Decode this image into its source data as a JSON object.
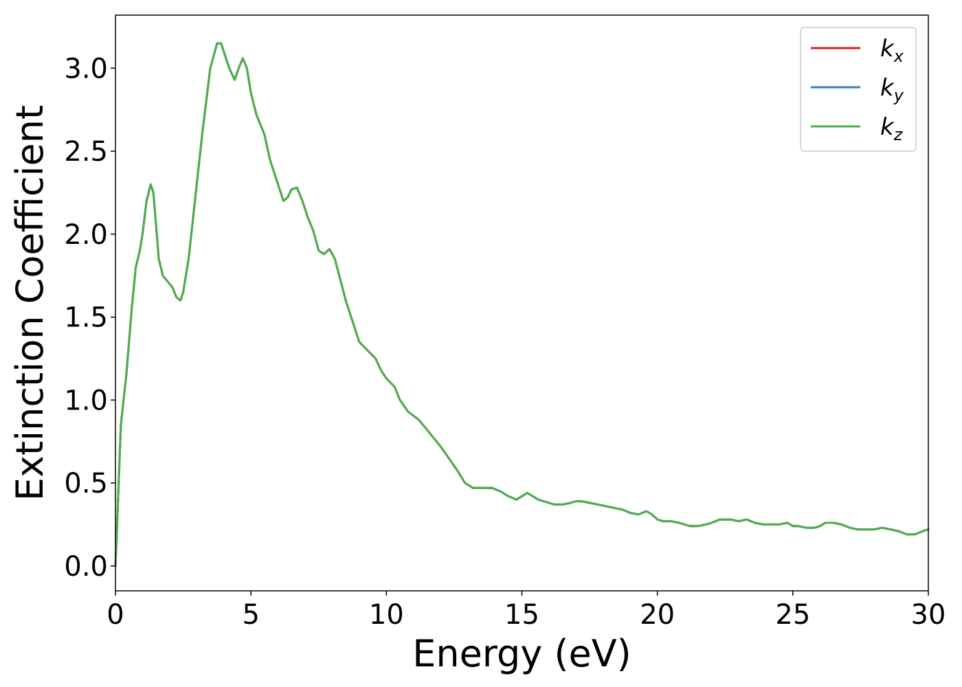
{
  "chart_data": {
    "type": "line",
    "title": "",
    "xlabel": "Energy (eV)",
    "ylabel": "Extinction Coefficient",
    "xlim": [
      0,
      30
    ],
    "ylim": [
      -0.15,
      3.32
    ],
    "xticks": [
      0,
      5,
      10,
      15,
      20,
      25,
      30
    ],
    "xtick_labels": [
      "0",
      "5",
      "10",
      "15",
      "20",
      "25",
      "30"
    ],
    "yticks": [
      0.0,
      0.5,
      1.0,
      1.5,
      2.0,
      2.5,
      3.0
    ],
    "ytick_labels": [
      "0.0",
      "0.5",
      "1.0",
      "1.5",
      "2.0",
      "2.5",
      "3.0"
    ],
    "grid": false,
    "legend_position": "top-right",
    "x": [
      0,
      0.05,
      0.2,
      0.4,
      0.6,
      0.75,
      0.9,
      1.0,
      1.15,
      1.3,
      1.4,
      1.5,
      1.6,
      1.75,
      1.9,
      2.1,
      2.25,
      2.4,
      2.5,
      2.7,
      3.0,
      3.2,
      3.5,
      3.75,
      3.9,
      4.0,
      4.2,
      4.4,
      4.55,
      4.7,
      4.85,
      5.0,
      5.2,
      5.5,
      5.7,
      6.0,
      6.2,
      6.35,
      6.5,
      6.7,
      6.9,
      7.1,
      7.3,
      7.5,
      7.7,
      7.9,
      8.1,
      8.5,
      9.0,
      9.3,
      9.6,
      9.8,
      10.0,
      10.3,
      10.5,
      10.8,
      11.2,
      11.5,
      11.8,
      12.0,
      12.3,
      12.6,
      12.9,
      13.2,
      13.5,
      13.9,
      14.2,
      14.5,
      14.8,
      15.0,
      15.2,
      15.4,
      15.6,
      15.8,
      16.0,
      16.2,
      16.5,
      16.8,
      17.0,
      17.2,
      17.5,
      17.8,
      18.1,
      18.4,
      18.7,
      19.0,
      19.3,
      19.6,
      19.8,
      20.0,
      20.2,
      20.5,
      20.8,
      21.2,
      21.5,
      21.8,
      22.0,
      22.3,
      22.7,
      23.0,
      23.3,
      23.6,
      23.9,
      24.2,
      24.5,
      24.8,
      25.0,
      25.2,
      25.5,
      25.8,
      26.0,
      26.2,
      26.5,
      26.8,
      27.1,
      27.4,
      27.7,
      28.0,
      28.3,
      28.6,
      28.9,
      29.2,
      29.5,
      29.8,
      30.0
    ],
    "series": [
      {
        "name": "k_x",
        "color": "#e41a1c",
        "y": [
          0.0,
          0.2,
          0.85,
          1.15,
          1.55,
          1.8,
          1.9,
          2.0,
          2.2,
          2.3,
          2.25,
          2.05,
          1.85,
          1.75,
          1.72,
          1.68,
          1.62,
          1.6,
          1.65,
          1.85,
          2.3,
          2.6,
          3.0,
          3.15,
          3.15,
          3.1,
          3.0,
          2.93,
          3.0,
          3.06,
          3.0,
          2.85,
          2.72,
          2.6,
          2.45,
          2.3,
          2.2,
          2.22,
          2.27,
          2.28,
          2.2,
          2.1,
          2.02,
          1.9,
          1.88,
          1.91,
          1.85,
          1.6,
          1.35,
          1.3,
          1.25,
          1.18,
          1.13,
          1.08,
          1.0,
          0.93,
          0.88,
          0.82,
          0.76,
          0.72,
          0.65,
          0.58,
          0.5,
          0.47,
          0.47,
          0.47,
          0.45,
          0.42,
          0.4,
          0.42,
          0.44,
          0.42,
          0.4,
          0.39,
          0.38,
          0.37,
          0.37,
          0.38,
          0.39,
          0.39,
          0.38,
          0.37,
          0.36,
          0.35,
          0.34,
          0.32,
          0.31,
          0.33,
          0.31,
          0.28,
          0.27,
          0.27,
          0.26,
          0.24,
          0.24,
          0.25,
          0.26,
          0.28,
          0.28,
          0.27,
          0.28,
          0.26,
          0.25,
          0.25,
          0.25,
          0.26,
          0.24,
          0.24,
          0.23,
          0.23,
          0.24,
          0.26,
          0.26,
          0.25,
          0.23,
          0.22,
          0.22,
          0.22,
          0.23,
          0.22,
          0.21,
          0.19,
          0.19,
          0.21,
          0.22
        ]
      },
      {
        "name": "k_y",
        "color": "#377eb8",
        "y": [
          0.0,
          0.2,
          0.85,
          1.15,
          1.55,
          1.8,
          1.9,
          2.0,
          2.2,
          2.3,
          2.25,
          2.05,
          1.85,
          1.75,
          1.72,
          1.68,
          1.62,
          1.6,
          1.65,
          1.85,
          2.3,
          2.6,
          3.0,
          3.15,
          3.15,
          3.1,
          3.0,
          2.93,
          3.0,
          3.06,
          3.0,
          2.85,
          2.72,
          2.6,
          2.45,
          2.3,
          2.2,
          2.22,
          2.27,
          2.28,
          2.2,
          2.1,
          2.02,
          1.9,
          1.88,
          1.91,
          1.85,
          1.6,
          1.35,
          1.3,
          1.25,
          1.18,
          1.13,
          1.08,
          1.0,
          0.93,
          0.88,
          0.82,
          0.76,
          0.72,
          0.65,
          0.58,
          0.5,
          0.47,
          0.47,
          0.47,
          0.45,
          0.42,
          0.4,
          0.42,
          0.44,
          0.42,
          0.4,
          0.39,
          0.38,
          0.37,
          0.37,
          0.38,
          0.39,
          0.39,
          0.38,
          0.37,
          0.36,
          0.35,
          0.34,
          0.32,
          0.31,
          0.33,
          0.31,
          0.28,
          0.27,
          0.27,
          0.26,
          0.24,
          0.24,
          0.25,
          0.26,
          0.28,
          0.28,
          0.27,
          0.28,
          0.26,
          0.25,
          0.25,
          0.25,
          0.26,
          0.24,
          0.24,
          0.23,
          0.23,
          0.24,
          0.26,
          0.26,
          0.25,
          0.23,
          0.22,
          0.22,
          0.22,
          0.23,
          0.22,
          0.21,
          0.19,
          0.19,
          0.21,
          0.22
        ]
      },
      {
        "name": "k_z",
        "color": "#4daf4a",
        "y": [
          0.0,
          0.2,
          0.85,
          1.15,
          1.55,
          1.8,
          1.9,
          2.0,
          2.2,
          2.3,
          2.25,
          2.05,
          1.85,
          1.75,
          1.72,
          1.68,
          1.62,
          1.6,
          1.65,
          1.85,
          2.3,
          2.6,
          3.0,
          3.15,
          3.15,
          3.1,
          3.0,
          2.93,
          3.0,
          3.06,
          3.0,
          2.85,
          2.72,
          2.6,
          2.45,
          2.3,
          2.2,
          2.22,
          2.27,
          2.28,
          2.2,
          2.1,
          2.02,
          1.9,
          1.88,
          1.91,
          1.85,
          1.6,
          1.35,
          1.3,
          1.25,
          1.18,
          1.13,
          1.08,
          1.0,
          0.93,
          0.88,
          0.82,
          0.76,
          0.72,
          0.65,
          0.58,
          0.5,
          0.47,
          0.47,
          0.47,
          0.45,
          0.42,
          0.4,
          0.42,
          0.44,
          0.42,
          0.4,
          0.39,
          0.38,
          0.37,
          0.37,
          0.38,
          0.39,
          0.39,
          0.38,
          0.37,
          0.36,
          0.35,
          0.34,
          0.32,
          0.31,
          0.33,
          0.31,
          0.28,
          0.27,
          0.27,
          0.26,
          0.24,
          0.24,
          0.25,
          0.26,
          0.28,
          0.28,
          0.27,
          0.28,
          0.26,
          0.25,
          0.25,
          0.25,
          0.26,
          0.24,
          0.24,
          0.23,
          0.23,
          0.24,
          0.26,
          0.26,
          0.25,
          0.23,
          0.22,
          0.22,
          0.22,
          0.23,
          0.22,
          0.21,
          0.19,
          0.19,
          0.21,
          0.22
        ]
      }
    ],
    "legend": [
      {
        "main": "k",
        "sub": "x",
        "color": "#e41a1c"
      },
      {
        "main": "k",
        "sub": "y",
        "color": "#377eb8"
      },
      {
        "main": "k",
        "sub": "z",
        "color": "#4daf4a"
      }
    ]
  }
}
